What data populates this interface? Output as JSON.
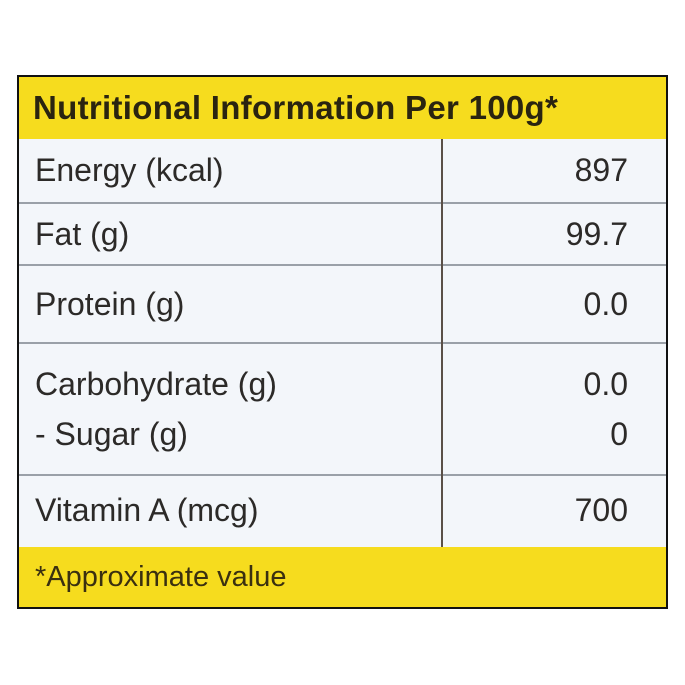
{
  "header": {
    "title": "Nutritional Information Per 100g*"
  },
  "table": {
    "rows": [
      [
        {
          "label": "Energy (kcal)",
          "value": "897"
        }
      ],
      [
        {
          "label": "Fat (g)",
          "value": "99.7"
        }
      ],
      [
        {
          "label": "Protein (g)",
          "value": "0.0"
        }
      ],
      [
        {
          "label": "Carbohydrate (g)",
          "value": "0.0"
        },
        {
          "label": "- Sugar (g)",
          "value": "0"
        }
      ],
      [
        {
          "label": "Vitamin A (mcg)",
          "value": "700"
        }
      ]
    ]
  },
  "footer": {
    "note": "*Approximate value"
  }
}
